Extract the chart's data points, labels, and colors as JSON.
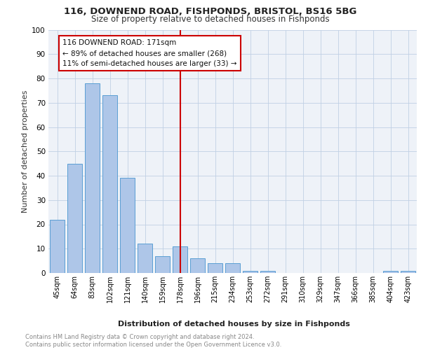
{
  "title1": "116, DOWNEND ROAD, FISHPONDS, BRISTOL, BS16 5BG",
  "title2": "Size of property relative to detached houses in Fishponds",
  "xlabel": "Distribution of detached houses by size in Fishponds",
  "ylabel": "Number of detached properties",
  "bar_labels": [
    "45sqm",
    "64sqm",
    "83sqm",
    "102sqm",
    "121sqm",
    "140sqm",
    "159sqm",
    "178sqm",
    "196sqm",
    "215sqm",
    "234sqm",
    "253sqm",
    "272sqm",
    "291sqm",
    "310sqm",
    "329sqm",
    "347sqm",
    "366sqm",
    "385sqm",
    "404sqm",
    "423sqm"
  ],
  "bar_values": [
    22,
    45,
    78,
    73,
    39,
    12,
    7,
    11,
    6,
    4,
    4,
    1,
    1,
    0,
    0,
    0,
    0,
    0,
    0,
    1,
    1
  ],
  "bar_color": "#aec6e8",
  "bar_edgecolor": "#5a9fd4",
  "vline_index": 7,
  "vline_color": "#cc0000",
  "annotation_text": "116 DOWNEND ROAD: 171sqm\n← 89% of detached houses are smaller (268)\n11% of semi-detached houses are larger (33) →",
  "annotation_box_color": "#ffffff",
  "annotation_box_edgecolor": "#cc0000",
  "ylim": [
    0,
    100
  ],
  "yticks": [
    0,
    10,
    20,
    30,
    40,
    50,
    60,
    70,
    80,
    90,
    100
  ],
  "bg_color": "#eef2f8",
  "footer": "Contains HM Land Registry data © Crown copyright and database right 2024.\nContains public sector information licensed under the Open Government Licence v3.0."
}
